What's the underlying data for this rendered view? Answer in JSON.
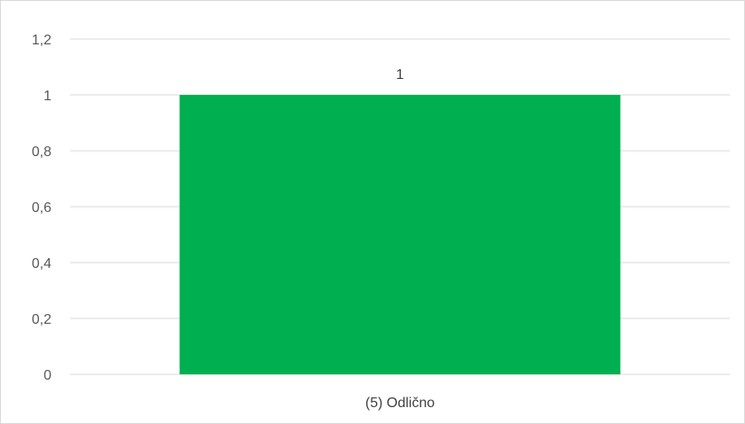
{
  "chart_data": {
    "type": "bar",
    "categories": [
      "(5)    Odlično"
    ],
    "values": [
      1
    ],
    "data_labels": [
      "1"
    ],
    "title": "",
    "xlabel": "",
    "ylabel": "",
    "ylim": [
      0,
      1.2
    ],
    "yticks": [
      0,
      0.2,
      0.4,
      0.6,
      0.8,
      1,
      1.2
    ],
    "ytick_labels": [
      "0",
      "0,2",
      "0,4",
      "0,6",
      "0,8",
      "1",
      "1,2"
    ],
    "grid": true,
    "legend": "none",
    "colors": {
      "bar": "#00b050",
      "gridline": "#d9d9d9",
      "axis": "#d9d9d9",
      "text": "#595959"
    }
  }
}
